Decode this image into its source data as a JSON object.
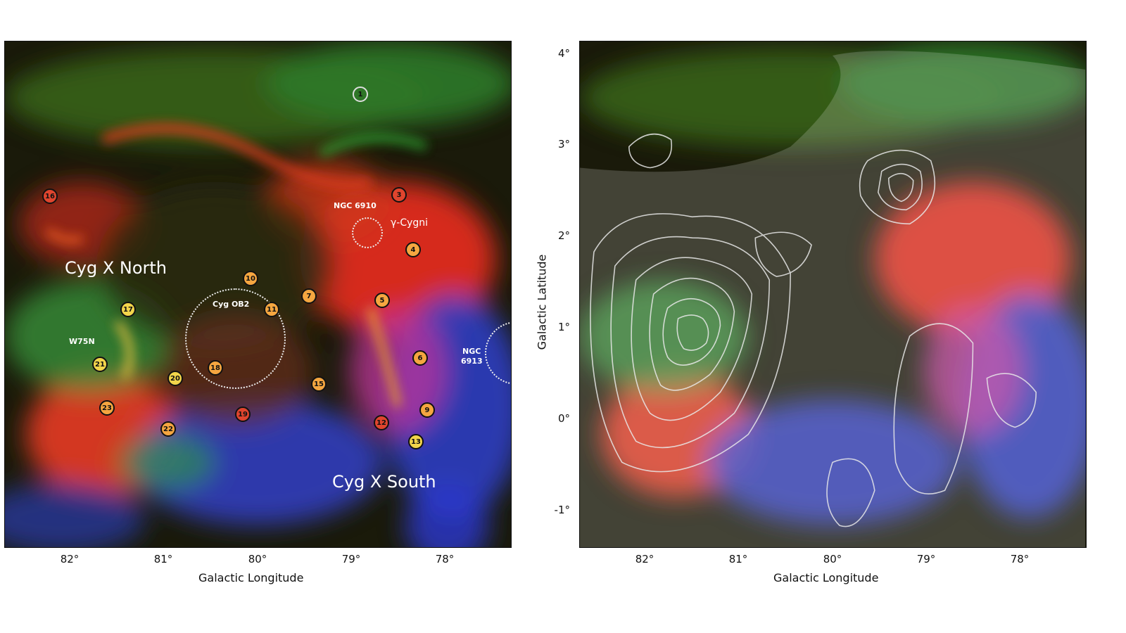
{
  "x_axis": {
    "label": "Galactic Longitude",
    "ticks": [
      "82°",
      "81°",
      "80°",
      "79°",
      "78°"
    ]
  },
  "y_axis": {
    "label": "Galactic Latitude",
    "ticks": [
      "4°",
      "3°",
      "2°",
      "1°",
      "0°",
      "-1°"
    ]
  },
  "left_panel": {
    "regions": {
      "north": "Cyg X North",
      "south": "Cyg X South",
      "ngc6910": "NGC 6910",
      "gamma_cygni": "γ-Cygni",
      "cyg_ob2": "Cyg OB2",
      "w75n": "W75N",
      "ngc6913_a": "NGC",
      "ngc6913_b": "6913"
    },
    "sources": [
      "1",
      "3",
      "4",
      "5",
      "6",
      "7",
      "9",
      "10",
      "11",
      "12",
      "13",
      "15",
      "16",
      "17",
      "18",
      "19",
      "20",
      "21",
      "22",
      "23"
    ]
  },
  "colors": {
    "red_channel": "#e0301e",
    "green_channel": "#3fbf3a",
    "blue_channel": "#3445d8",
    "contour": "#e8e8e8"
  }
}
